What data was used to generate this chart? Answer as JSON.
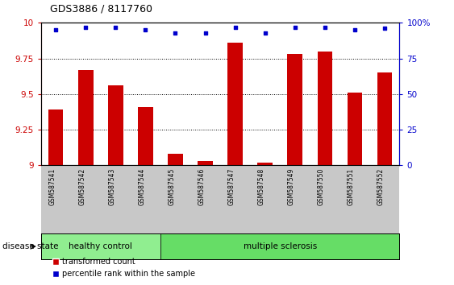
{
  "title": "GDS3886 / 8117760",
  "samples": [
    "GSM587541",
    "GSM587542",
    "GSM587543",
    "GSM587544",
    "GSM587545",
    "GSM587546",
    "GSM587547",
    "GSM587548",
    "GSM587549",
    "GSM587550",
    "GSM587551",
    "GSM587552"
  ],
  "red_values": [
    9.39,
    9.67,
    9.56,
    9.41,
    9.08,
    9.03,
    9.86,
    9.02,
    9.78,
    9.8,
    9.51,
    9.65
  ],
  "blue_percentiles": [
    95,
    97,
    97,
    95,
    93,
    93,
    97,
    93,
    97,
    97,
    95,
    96
  ],
  "ylim_left": [
    9.0,
    10.0
  ],
  "ylim_right": [
    0,
    100
  ],
  "yticks_left": [
    9.0,
    9.25,
    9.5,
    9.75,
    10.0
  ],
  "yticks_right": [
    0,
    25,
    50,
    75,
    100
  ],
  "ytick_labels_left": [
    "9",
    "9.25",
    "9.5",
    "9.75",
    "10"
  ],
  "ytick_labels_right": [
    "0",
    "25",
    "50",
    "75",
    "100%"
  ],
  "red_color": "#cc0000",
  "blue_color": "#0000cc",
  "bar_width": 0.5,
  "healthy_count": 4,
  "healthy_color": "#90ee90",
  "ms_color": "#66dd66",
  "disease_state_label": "disease state",
  "legend_red": "transformed count",
  "legend_blue": "percentile rank within the sample",
  "tick_bg_color": "#c8c8c8",
  "bg_color": "#ffffff",
  "grid_yticks": [
    9.25,
    9.5,
    9.75
  ]
}
